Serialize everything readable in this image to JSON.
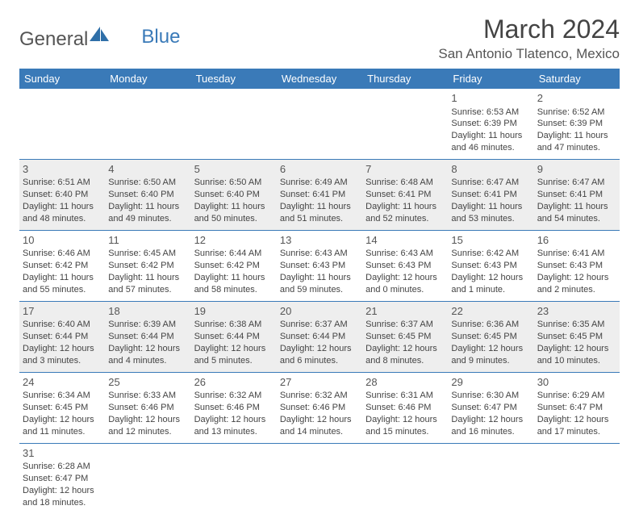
{
  "header": {
    "logo_text_1": "General",
    "logo_text_2": "Blue",
    "month_title": "March 2024",
    "location": "San Antonio Tlatenco, Mexico"
  },
  "colors": {
    "header_bg": "#3a7ab8",
    "header_fg": "#ffffff",
    "cell_alt_bg": "#eeeeee",
    "cell_bg": "#ffffff",
    "border": "#3a7ab8",
    "text": "#444444"
  },
  "day_names": [
    "Sunday",
    "Monday",
    "Tuesday",
    "Wednesday",
    "Thursday",
    "Friday",
    "Saturday"
  ],
  "weeks": [
    [
      null,
      null,
      null,
      null,
      null,
      {
        "n": "1",
        "sr": "Sunrise: 6:53 AM",
        "ss": "Sunset: 6:39 PM",
        "dl1": "Daylight: 11 hours",
        "dl2": "and 46 minutes."
      },
      {
        "n": "2",
        "sr": "Sunrise: 6:52 AM",
        "ss": "Sunset: 6:39 PM",
        "dl1": "Daylight: 11 hours",
        "dl2": "and 47 minutes."
      }
    ],
    [
      {
        "n": "3",
        "sr": "Sunrise: 6:51 AM",
        "ss": "Sunset: 6:40 PM",
        "dl1": "Daylight: 11 hours",
        "dl2": "and 48 minutes."
      },
      {
        "n": "4",
        "sr": "Sunrise: 6:50 AM",
        "ss": "Sunset: 6:40 PM",
        "dl1": "Daylight: 11 hours",
        "dl2": "and 49 minutes."
      },
      {
        "n": "5",
        "sr": "Sunrise: 6:50 AM",
        "ss": "Sunset: 6:40 PM",
        "dl1": "Daylight: 11 hours",
        "dl2": "and 50 minutes."
      },
      {
        "n": "6",
        "sr": "Sunrise: 6:49 AM",
        "ss": "Sunset: 6:41 PM",
        "dl1": "Daylight: 11 hours",
        "dl2": "and 51 minutes."
      },
      {
        "n": "7",
        "sr": "Sunrise: 6:48 AM",
        "ss": "Sunset: 6:41 PM",
        "dl1": "Daylight: 11 hours",
        "dl2": "and 52 minutes."
      },
      {
        "n": "8",
        "sr": "Sunrise: 6:47 AM",
        "ss": "Sunset: 6:41 PM",
        "dl1": "Daylight: 11 hours",
        "dl2": "and 53 minutes."
      },
      {
        "n": "9",
        "sr": "Sunrise: 6:47 AM",
        "ss": "Sunset: 6:41 PM",
        "dl1": "Daylight: 11 hours",
        "dl2": "and 54 minutes."
      }
    ],
    [
      {
        "n": "10",
        "sr": "Sunrise: 6:46 AM",
        "ss": "Sunset: 6:42 PM",
        "dl1": "Daylight: 11 hours",
        "dl2": "and 55 minutes."
      },
      {
        "n": "11",
        "sr": "Sunrise: 6:45 AM",
        "ss": "Sunset: 6:42 PM",
        "dl1": "Daylight: 11 hours",
        "dl2": "and 57 minutes."
      },
      {
        "n": "12",
        "sr": "Sunrise: 6:44 AM",
        "ss": "Sunset: 6:42 PM",
        "dl1": "Daylight: 11 hours",
        "dl2": "and 58 minutes."
      },
      {
        "n": "13",
        "sr": "Sunrise: 6:43 AM",
        "ss": "Sunset: 6:43 PM",
        "dl1": "Daylight: 11 hours",
        "dl2": "and 59 minutes."
      },
      {
        "n": "14",
        "sr": "Sunrise: 6:43 AM",
        "ss": "Sunset: 6:43 PM",
        "dl1": "Daylight: 12 hours",
        "dl2": "and 0 minutes."
      },
      {
        "n": "15",
        "sr": "Sunrise: 6:42 AM",
        "ss": "Sunset: 6:43 PM",
        "dl1": "Daylight: 12 hours",
        "dl2": "and 1 minute."
      },
      {
        "n": "16",
        "sr": "Sunrise: 6:41 AM",
        "ss": "Sunset: 6:43 PM",
        "dl1": "Daylight: 12 hours",
        "dl2": "and 2 minutes."
      }
    ],
    [
      {
        "n": "17",
        "sr": "Sunrise: 6:40 AM",
        "ss": "Sunset: 6:44 PM",
        "dl1": "Daylight: 12 hours",
        "dl2": "and 3 minutes."
      },
      {
        "n": "18",
        "sr": "Sunrise: 6:39 AM",
        "ss": "Sunset: 6:44 PM",
        "dl1": "Daylight: 12 hours",
        "dl2": "and 4 minutes."
      },
      {
        "n": "19",
        "sr": "Sunrise: 6:38 AM",
        "ss": "Sunset: 6:44 PM",
        "dl1": "Daylight: 12 hours",
        "dl2": "and 5 minutes."
      },
      {
        "n": "20",
        "sr": "Sunrise: 6:37 AM",
        "ss": "Sunset: 6:44 PM",
        "dl1": "Daylight: 12 hours",
        "dl2": "and 6 minutes."
      },
      {
        "n": "21",
        "sr": "Sunrise: 6:37 AM",
        "ss": "Sunset: 6:45 PM",
        "dl1": "Daylight: 12 hours",
        "dl2": "and 8 minutes."
      },
      {
        "n": "22",
        "sr": "Sunrise: 6:36 AM",
        "ss": "Sunset: 6:45 PM",
        "dl1": "Daylight: 12 hours",
        "dl2": "and 9 minutes."
      },
      {
        "n": "23",
        "sr": "Sunrise: 6:35 AM",
        "ss": "Sunset: 6:45 PM",
        "dl1": "Daylight: 12 hours",
        "dl2": "and 10 minutes."
      }
    ],
    [
      {
        "n": "24",
        "sr": "Sunrise: 6:34 AM",
        "ss": "Sunset: 6:45 PM",
        "dl1": "Daylight: 12 hours",
        "dl2": "and 11 minutes."
      },
      {
        "n": "25",
        "sr": "Sunrise: 6:33 AM",
        "ss": "Sunset: 6:46 PM",
        "dl1": "Daylight: 12 hours",
        "dl2": "and 12 minutes."
      },
      {
        "n": "26",
        "sr": "Sunrise: 6:32 AM",
        "ss": "Sunset: 6:46 PM",
        "dl1": "Daylight: 12 hours",
        "dl2": "and 13 minutes."
      },
      {
        "n": "27",
        "sr": "Sunrise: 6:32 AM",
        "ss": "Sunset: 6:46 PM",
        "dl1": "Daylight: 12 hours",
        "dl2": "and 14 minutes."
      },
      {
        "n": "28",
        "sr": "Sunrise: 6:31 AM",
        "ss": "Sunset: 6:46 PM",
        "dl1": "Daylight: 12 hours",
        "dl2": "and 15 minutes."
      },
      {
        "n": "29",
        "sr": "Sunrise: 6:30 AM",
        "ss": "Sunset: 6:47 PM",
        "dl1": "Daylight: 12 hours",
        "dl2": "and 16 minutes."
      },
      {
        "n": "30",
        "sr": "Sunrise: 6:29 AM",
        "ss": "Sunset: 6:47 PM",
        "dl1": "Daylight: 12 hours",
        "dl2": "and 17 minutes."
      }
    ],
    [
      {
        "n": "31",
        "sr": "Sunrise: 6:28 AM",
        "ss": "Sunset: 6:47 PM",
        "dl1": "Daylight: 12 hours",
        "dl2": "and 18 minutes."
      },
      null,
      null,
      null,
      null,
      null,
      null
    ]
  ]
}
